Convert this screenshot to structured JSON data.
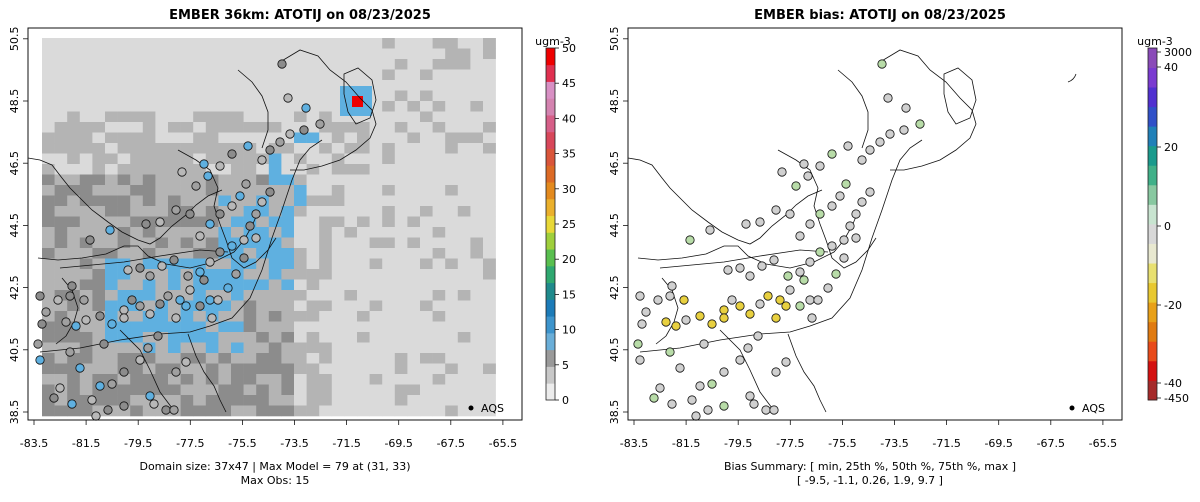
{
  "left": {
    "title": "EMBER 36km: ATOTIJ on 08/23/2025",
    "legend_label": "AQS",
    "cbar_title": "ugm-3",
    "cbar_ticks": [
      0,
      5,
      10,
      15,
      20,
      25,
      30,
      35,
      40,
      45,
      50
    ],
    "cbar_colors": [
      "#ececec",
      "#c8c8c8",
      "#9a9a9a",
      "#6aaed8",
      "#3d94cc",
      "#1c7bb8",
      "#1f8a8c",
      "#2fa870",
      "#59bf4f",
      "#9fcf3c",
      "#e8d838",
      "#eab02c",
      "#e38a1e",
      "#dc6a25",
      "#d9553a",
      "#d8475a",
      "#d65f88",
      "#d483b0",
      "#d890c4",
      "#e03050",
      "#ee0000"
    ],
    "footer1": "Domain size: 37x47 | Max Model = 79 at (31, 33)",
    "footer2": "Max Obs: 15"
  },
  "right": {
    "title": "EMBER bias: ATOTIJ on 08/23/2025",
    "legend_label": "AQS",
    "cbar_title": "ugm-3",
    "cbar_ticks": [
      "3000",
      "40",
      "20",
      "0",
      "-20",
      "-40",
      "-450"
    ],
    "cbar_colors": [
      "#a52a2a",
      "#d41010",
      "#e84a1a",
      "#e07a10",
      "#e8a018",
      "#e8c830",
      "#e8e070",
      "#e8e8d0",
      "#d8d8d8",
      "#c8e4d0",
      "#88c8a0",
      "#40b088",
      "#1a9a8c",
      "#2080b8",
      "#3050c8",
      "#5030d0",
      "#7a3ad0",
      "#8a4ab8"
    ],
    "footer1": "Bias Summary: [ min, 25th %, 50th %, 75th %, max ]",
    "footer2": "[ -9.5,   -1.1,   0.26,   1.9,   9.7 ]"
  },
  "axes": {
    "x_ticks": [
      "-83.5",
      "-81.5",
      "-79.5",
      "-77.5",
      "-75.5",
      "-73.5",
      "-71.5",
      "-69.5",
      "-67.5",
      "-65.5"
    ],
    "y_ticks": [
      "38.5",
      "40.5",
      "42.5",
      "44.5",
      "46.5",
      "48.5",
      "50.5"
    ]
  },
  "colors": {
    "grid_light": "#dadada",
    "grid_mid": "#b4b4b4",
    "grid_dark": "#8c8c8c",
    "model_blue": "#5fb0e0",
    "model_max": "#ee0000",
    "bias_yellow": "#e8d040",
    "bias_green": "#b8dca8",
    "bias_neutral": "#d0d0d0"
  }
}
